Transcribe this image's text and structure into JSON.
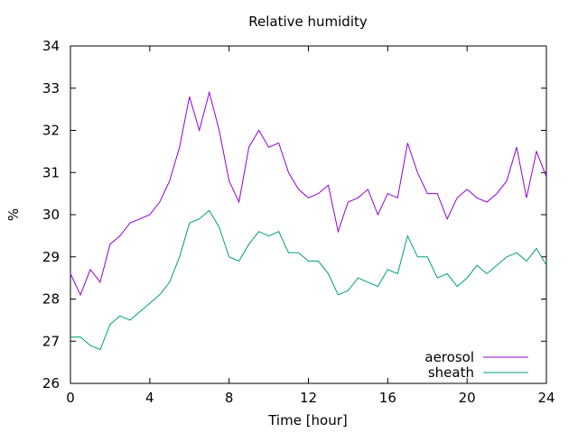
{
  "chart_data": {
    "type": "line",
    "title": "Relative humidity",
    "xlabel": "Time [hour]",
    "ylabel": "%",
    "xlim": [
      0,
      24
    ],
    "ylim": [
      26,
      34
    ],
    "xticks": [
      0,
      4,
      8,
      12,
      16,
      20,
      24
    ],
    "yticks": [
      26,
      27,
      28,
      29,
      30,
      31,
      32,
      33,
      34
    ],
    "grid": false,
    "legend_position": "bottom-right",
    "series": [
      {
        "name": "aerosol",
        "color": "#9400d3",
        "x": [
          0,
          0.5,
          1,
          1.5,
          2,
          2.5,
          3,
          3.5,
          4,
          4.5,
          5,
          5.5,
          6,
          6.5,
          7,
          7.5,
          8,
          8.5,
          9,
          9.5,
          10,
          10.5,
          11,
          11.5,
          12,
          12.5,
          13,
          13.5,
          14,
          14.5,
          15,
          15.5,
          16,
          16.5,
          17,
          17.5,
          18,
          18.5,
          19,
          19.5,
          20,
          20.5,
          21,
          21.5,
          22,
          22.5,
          23,
          23.5,
          24
        ],
        "y": [
          28.6,
          28.1,
          28.7,
          28.4,
          29.3,
          29.5,
          29.8,
          29.9,
          30.0,
          30.3,
          30.8,
          31.6,
          32.8,
          32.0,
          32.9,
          32.0,
          30.8,
          30.3,
          31.6,
          32.0,
          31.6,
          31.7,
          31.0,
          30.6,
          30.4,
          30.5,
          30.7,
          29.6,
          30.3,
          30.4,
          30.6,
          30.0,
          30.5,
          30.4,
          31.7,
          31.0,
          30.5,
          30.5,
          29.9,
          30.4,
          30.6,
          30.4,
          30.3,
          30.5,
          30.8,
          31.6,
          30.4,
          31.5,
          30.9
        ]
      },
      {
        "name": "sheath",
        "color": "#009e73",
        "x": [
          0,
          0.5,
          1,
          1.5,
          2,
          2.5,
          3,
          3.5,
          4,
          4.5,
          5,
          5.5,
          6,
          6.5,
          7,
          7.5,
          8,
          8.5,
          9,
          9.5,
          10,
          10.5,
          11,
          11.5,
          12,
          12.5,
          13,
          13.5,
          14,
          14.5,
          15,
          15.5,
          16,
          16.5,
          17,
          17.5,
          18,
          18.5,
          19,
          19.5,
          20,
          20.5,
          21,
          21.5,
          22,
          22.5,
          23,
          23.5,
          24
        ],
        "y": [
          27.1,
          27.1,
          26.9,
          26.8,
          27.4,
          27.6,
          27.5,
          27.7,
          27.9,
          28.1,
          28.4,
          29.0,
          29.8,
          29.9,
          30.1,
          29.7,
          29.0,
          28.9,
          29.3,
          29.6,
          29.5,
          29.6,
          29.1,
          29.1,
          28.9,
          28.9,
          28.6,
          28.1,
          28.2,
          28.5,
          28.4,
          28.3,
          28.7,
          28.6,
          29.5,
          29.0,
          29.0,
          28.5,
          28.6,
          28.3,
          28.5,
          28.8,
          28.6,
          28.8,
          29.0,
          29.1,
          28.9,
          29.2,
          28.8
        ]
      }
    ]
  }
}
